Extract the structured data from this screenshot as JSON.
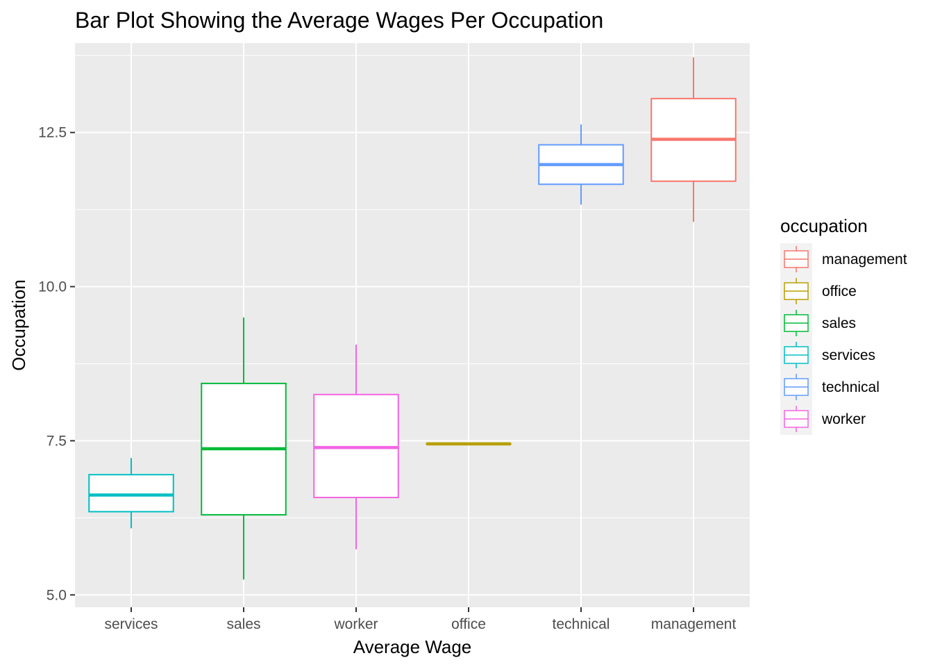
{
  "chart_data": {
    "type": "boxplot",
    "title": "Bar Plot Showing the Average Wages Per Occupation",
    "xlabel": "Average Wage",
    "ylabel": "Occupation",
    "ylim": [
      4.8,
      13.95
    ],
    "yticks": [
      5.0,
      7.5,
      10.0,
      12.5
    ],
    "ytick_labels": [
      "5.0",
      "7.5",
      "10.0",
      "12.5"
    ],
    "grid": true,
    "legend_title": "occupation",
    "legend_position": "right",
    "legend_entries": [
      {
        "label": "management",
        "color": "#F8766D"
      },
      {
        "label": "office",
        "color": "#B79F00"
      },
      {
        "label": "sales",
        "color": "#00BA38"
      },
      {
        "label": "services",
        "color": "#00BFC4"
      },
      {
        "label": "technical",
        "color": "#619CFF"
      },
      {
        "label": "worker",
        "color": "#F564E3"
      }
    ],
    "categories": [
      "services",
      "sales",
      "worker",
      "office",
      "technical",
      "management"
    ],
    "boxes": [
      {
        "category": "services",
        "color": "#00BFC4",
        "whisker_low": 6.08,
        "q1": 6.35,
        "median": 6.62,
        "q3": 6.95,
        "whisker_high": 7.22
      },
      {
        "category": "sales",
        "color": "#00BA38",
        "whisker_low": 5.25,
        "q1": 6.3,
        "median": 7.37,
        "q3": 8.43,
        "whisker_high": 9.5
      },
      {
        "category": "worker",
        "color": "#F564E3",
        "whisker_low": 5.74,
        "q1": 6.58,
        "median": 7.39,
        "q3": 8.25,
        "whisker_high": 9.06
      },
      {
        "category": "office",
        "color": "#B79F00",
        "whisker_low": 7.45,
        "q1": 7.45,
        "median": 7.45,
        "q3": 7.45,
        "whisker_high": 7.45
      },
      {
        "category": "technical",
        "color": "#619CFF",
        "whisker_low": 11.33,
        "q1": 11.66,
        "median": 11.98,
        "q3": 12.3,
        "whisker_high": 12.63
      },
      {
        "category": "management",
        "color": "#F8766D",
        "whisker_low": 11.05,
        "q1": 11.71,
        "median": 12.39,
        "q3": 13.05,
        "whisker_high": 13.72
      }
    ]
  }
}
